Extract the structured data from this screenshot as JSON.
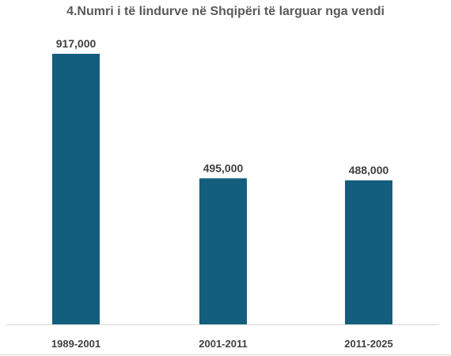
{
  "chart_data": {
    "type": "bar",
    "title": "4.Numri i të lindurve në Shqipëri të larguar nga vendi",
    "categories": [
      "1989-2001",
      "2001-2011",
      "2011-2025"
    ],
    "values": [
      917000,
      495000,
      488000
    ],
    "data_labels": [
      "917,000",
      "495,000",
      "488,000"
    ],
    "ylim": [
      0,
      917000
    ],
    "bar_color": "#135e7d",
    "grid": false,
    "legend": "none"
  }
}
